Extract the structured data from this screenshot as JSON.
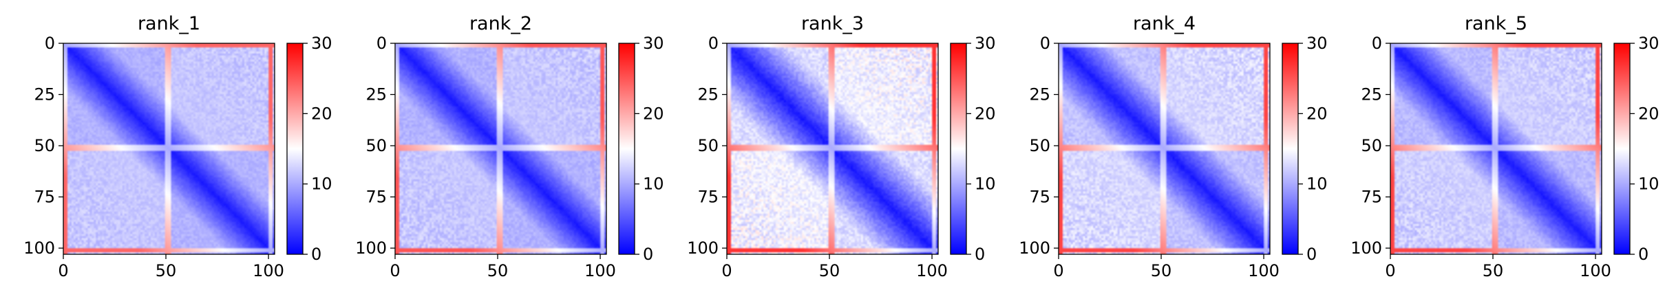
{
  "chart_data": {
    "type": "heatmap",
    "colormap": {
      "name": "bwr",
      "low": "#0000ff",
      "mid": "#ffffff",
      "high": "#ff0000"
    },
    "matrix_size": 104,
    "panels": [
      {
        "title": "rank_1",
        "xticks": [
          "0",
          "50",
          "100"
        ],
        "yticks": [
          "0",
          "25",
          "50",
          "75",
          "100"
        ],
        "colorbar": {
          "min": 0,
          "max": 30,
          "ticks": [
            "0",
            "10",
            "20",
            "30"
          ]
        },
        "offdiag_level": 10.5,
        "stripe_level": 24,
        "noise": 0.9
      },
      {
        "title": "rank_2",
        "xticks": [
          "0",
          "50",
          "100"
        ],
        "yticks": [
          "0",
          "25",
          "50",
          "75",
          "100"
        ],
        "colorbar": {
          "min": 0,
          "max": 30,
          "ticks": [
            "0",
            "10",
            "20",
            "30"
          ]
        },
        "offdiag_level": 10.5,
        "stripe_level": 25,
        "noise": 1.0
      },
      {
        "title": "rank_3",
        "xticks": [
          "0",
          "50",
          "100"
        ],
        "yticks": [
          "0",
          "25",
          "50",
          "75",
          "100"
        ],
        "colorbar": {
          "min": 0,
          "max": 30,
          "ticks": [
            "0",
            "10",
            "20",
            "30"
          ]
        },
        "offdiag_level": 13.0,
        "stripe_level": 27,
        "noise": 1.6
      },
      {
        "title": "rank_4",
        "xticks": [
          "0",
          "50",
          "100"
        ],
        "yticks": [
          "0",
          "25",
          "50",
          "75",
          "100"
        ],
        "colorbar": {
          "min": 0,
          "max": 30,
          "ticks": [
            "0",
            "10",
            "20",
            "30"
          ]
        },
        "offdiag_level": 11.5,
        "stripe_level": 26,
        "noise": 1.2
      },
      {
        "title": "rank_5",
        "xticks": [
          "0",
          "50",
          "100"
        ],
        "yticks": [
          "0",
          "25",
          "50",
          "75",
          "100"
        ],
        "colorbar": {
          "min": 0,
          "max": 30,
          "ticks": [
            "0",
            "10",
            "20",
            "30"
          ]
        },
        "offdiag_level": 11.0,
        "stripe_level": 26,
        "noise": 1.1
      }
    ]
  }
}
